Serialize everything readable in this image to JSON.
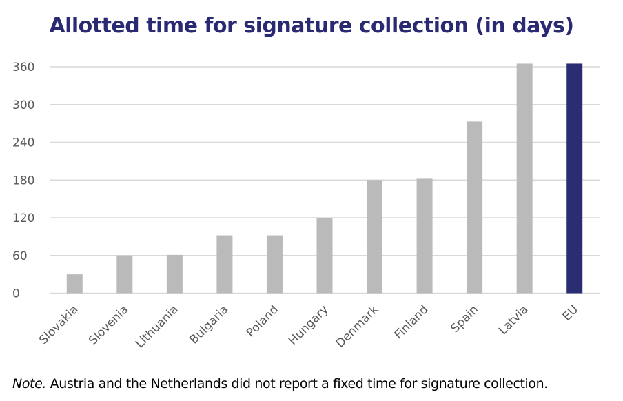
{
  "chart_data": {
    "type": "bar",
    "title": "Allotted time for signature collection (in days)",
    "categories": [
      "Slovakia",
      "Slovenia",
      "Lithuania",
      "Bulgaria",
      "Poland",
      "Hungary",
      "Denmark",
      "Finland",
      "Spain",
      "Latvia",
      "EU"
    ],
    "values": [
      30,
      60,
      61,
      92,
      92,
      120,
      180,
      182,
      273,
      365,
      365
    ],
    "colors": [
      "#bababa",
      "#bababa",
      "#bababa",
      "#bababa",
      "#bababa",
      "#bababa",
      "#bababa",
      "#bababa",
      "#bababa",
      "#bababa",
      "#2a2d72"
    ],
    "xlabel": "",
    "ylabel": "",
    "ylim": [
      0,
      360
    ],
    "yticks": [
      "0",
      "60",
      "120",
      "180",
      "240",
      "300",
      "360"
    ],
    "grid": true
  },
  "note": {
    "prefix": "Note.",
    "text": " Austria and the Netherlands did not report a fixed time for signature collection."
  }
}
